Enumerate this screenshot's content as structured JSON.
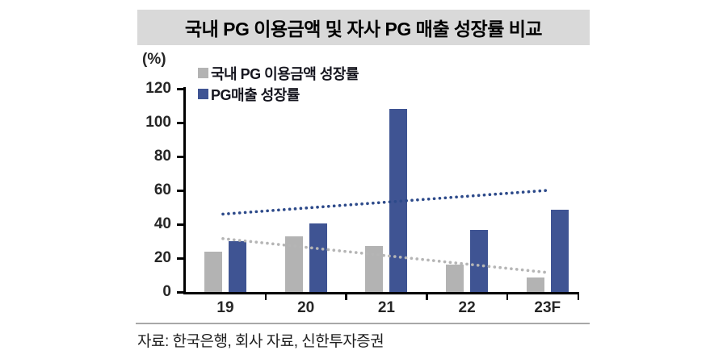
{
  "title": "국내 PG 이용금액 및 자사 PG 매출 성장률 비교",
  "source": "자료: 한국은행, 회사 자료, 신한투자증권",
  "colors": {
    "title_background": "#d9d9d9",
    "title_text": "#000000",
    "axis": "#000000",
    "tick_label": "#262626",
    "legend_text": "#16161f",
    "source_text": "#1f1f1f",
    "separator": "#a8a8a8",
    "series_gray": "#b3b3b3",
    "series_blue": "#3f5493",
    "trend_gray": "#b5b5b5",
    "trend_blue": "#2d4a8a"
  },
  "chart_data": {
    "type": "bar",
    "categories": [
      "19",
      "20",
      "21",
      "22",
      "23F"
    ],
    "series": [
      {
        "name": "국내 PG 이용금액 성장률",
        "color": "#b3b3b3",
        "values": [
          24,
          33,
          27,
          16,
          8.5
        ]
      },
      {
        "name": "PG매출 성장률",
        "color": "#3f5493",
        "values": [
          30,
          40.5,
          108,
          36.5,
          48.5
        ]
      }
    ],
    "trendlines": [
      {
        "for_series": "국내 PG 이용금액 성장률",
        "style": "dotted",
        "color": "#b5b5b5",
        "start_value": 31.5,
        "end_value": 11.5
      },
      {
        "for_series": "PG매출 성장률",
        "style": "dotted",
        "color": "#2d4a8a",
        "start_value": 46,
        "end_value": 60
      }
    ],
    "ylabel": "(%)",
    "ylim": [
      0,
      120
    ],
    "yticks": [
      0,
      20,
      40,
      60,
      80,
      100,
      120
    ],
    "grid": false,
    "legend_position": "top-left-inside"
  }
}
